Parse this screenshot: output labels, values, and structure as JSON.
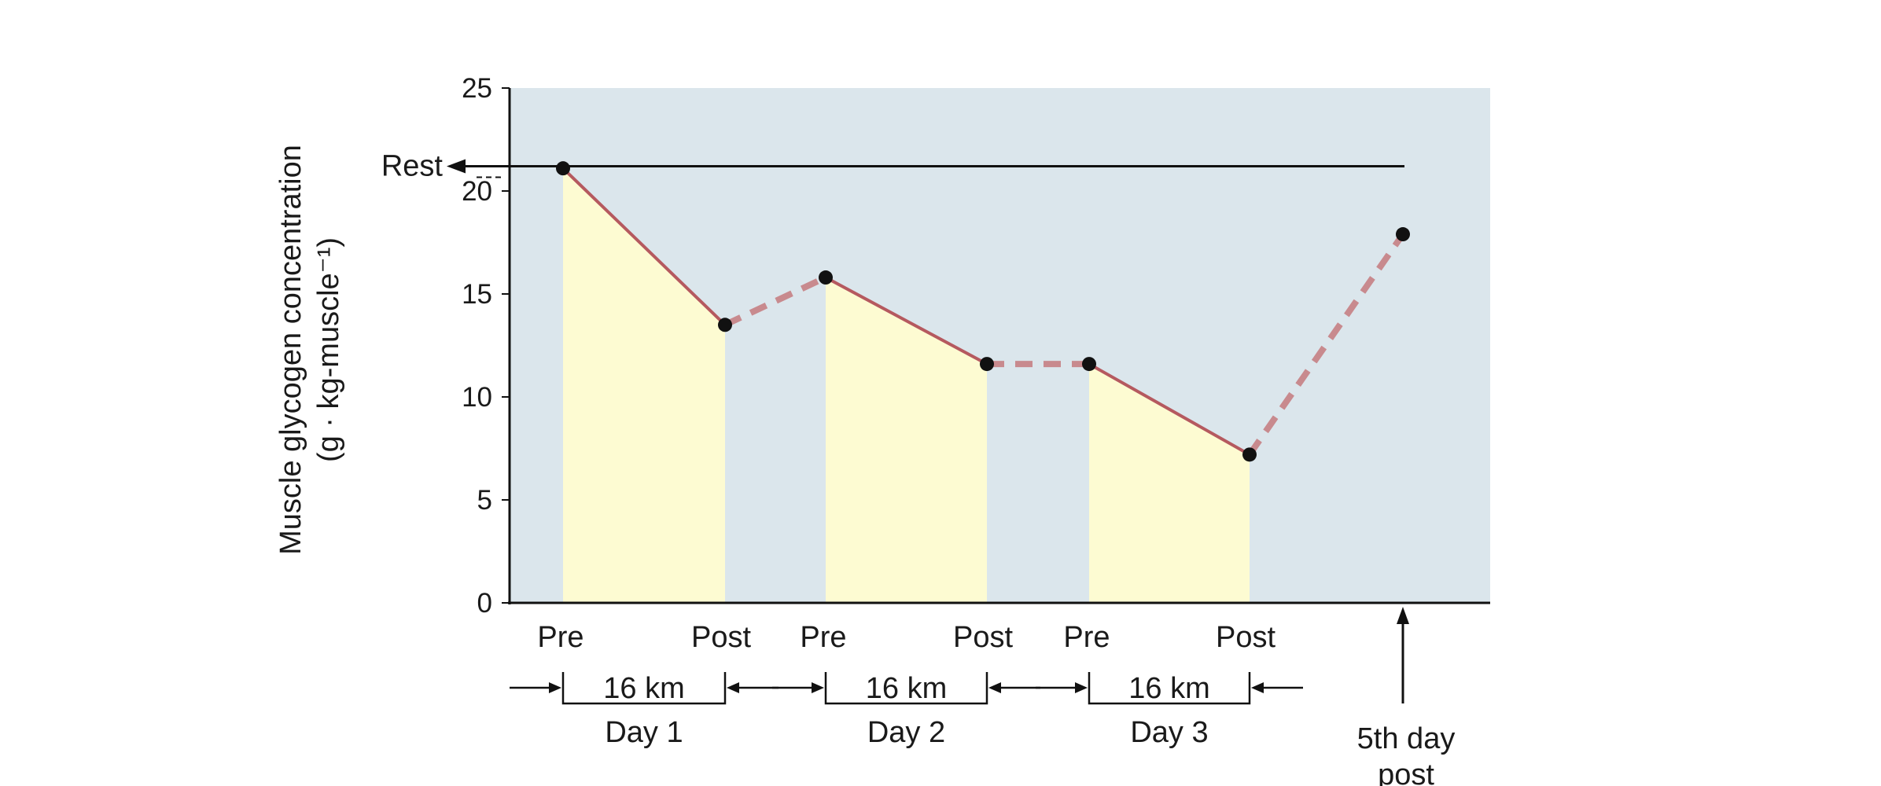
{
  "chart_data": {
    "type": "line",
    "ylabel_lines": [
      "Muscle glycogen concentration",
      "(g · kg-muscle⁻¹)"
    ],
    "ylim": [
      0,
      25
    ],
    "yticks": [
      0,
      5,
      10,
      15,
      20,
      25
    ],
    "rest_label": "Rest",
    "rest_value": 21.2,
    "x_tick_labels": [
      "Pre",
      "Post",
      "Pre",
      "Post",
      "Pre",
      "Post"
    ],
    "points": [
      {
        "label": "Day 1 Pre",
        "y": 21.1
      },
      {
        "label": "Day 1 Post",
        "y": 13.5
      },
      {
        "label": "Day 2 Pre",
        "y": 15.8
      },
      {
        "label": "Day 2 Post",
        "y": 11.6
      },
      {
        "label": "Day 3 Pre",
        "y": 11.6
      },
      {
        "label": "Day 3 Post",
        "y": 7.2
      },
      {
        "label": "5th day post",
        "y": 17.9
      }
    ],
    "run_segments": [
      {
        "distance": "16 km",
        "day": "Day 1"
      },
      {
        "distance": "16 km",
        "day": "Day 2"
      },
      {
        "distance": "16 km",
        "day": "Day 3"
      }
    ],
    "recovery_label_lines": [
      "5th day",
      "post"
    ],
    "colors": {
      "background": "#dbe6ec",
      "exercise_fill": "#fdfbd2",
      "line": "#b5595f",
      "recovery_line": "#c88a8e",
      "marker": "#111111"
    }
  }
}
